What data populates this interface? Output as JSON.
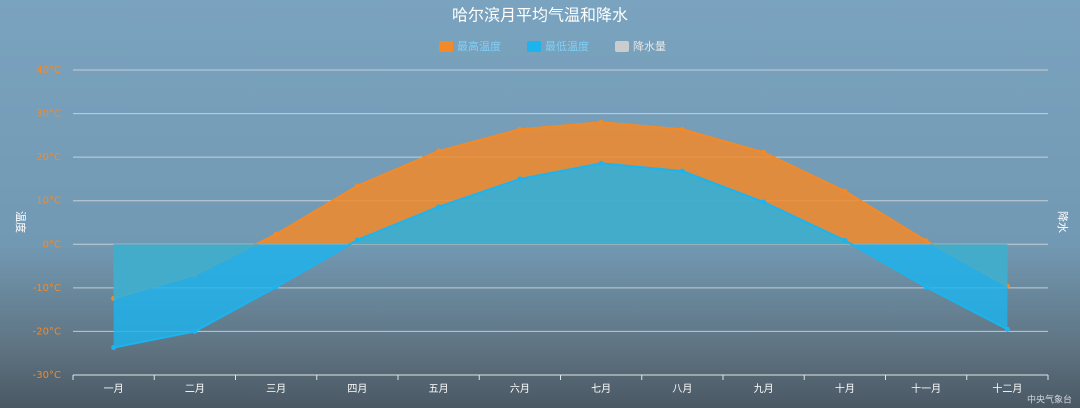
{
  "chart_data": {
    "type": "line",
    "title": "哈尔滨月平均气温和降水",
    "categories": [
      "一月",
      "二月",
      "三月",
      "四月",
      "五月",
      "六月",
      "七月",
      "八月",
      "九月",
      "十月",
      "十一月",
      "十二月"
    ],
    "series": [
      {
        "name": "最高温度",
        "color": "#f28a2a",
        "values": [
          -12.4,
          -7,
          2.3,
          13.4,
          21.4,
          26.4,
          28,
          26.4,
          21.1,
          12.2,
          0.8,
          -9.6
        ]
      },
      {
        "name": "最低温度",
        "color": "#1cb4ef",
        "values": [
          -23.7,
          -20,
          -9.8,
          1,
          8.6,
          15,
          18.6,
          16.8,
          9.7,
          0.9,
          -9.8,
          -19.5
        ]
      },
      {
        "name": "降水量",
        "color": "#cccccc",
        "values": [
          null,
          null,
          null,
          null,
          null,
          null,
          null,
          null,
          null,
          null,
          null,
          null
        ]
      }
    ],
    "ylabel": "温度",
    "y2label": "降水",
    "ylim": [
      -30,
      40
    ],
    "yticks": [
      {
        "value": -30,
        "label": "-30°C"
      },
      {
        "value": -20,
        "label": "-20°C"
      },
      {
        "value": -10,
        "label": "-10°C"
      },
      {
        "value": 0,
        "label": "0°C"
      },
      {
        "value": 10,
        "label": "10°C"
      },
      {
        "value": 20,
        "label": "20°C"
      },
      {
        "value": 30,
        "label": "30°C"
      },
      {
        "value": 40,
        "label": "40°C"
      }
    ],
    "grid": true,
    "source": "中央气象台"
  }
}
